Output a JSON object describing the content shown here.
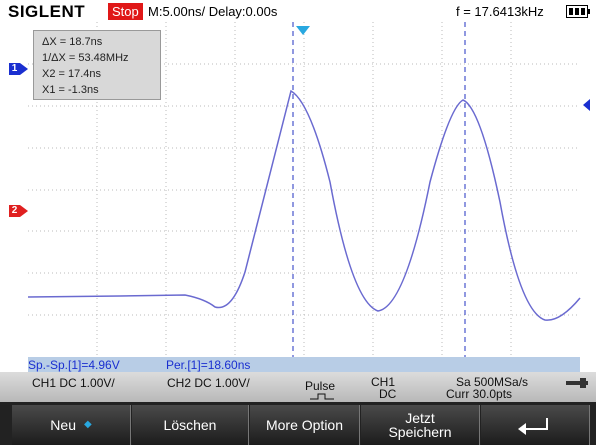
{
  "header": {
    "brand": "SIGLENT",
    "state": "Stop",
    "timebase": "M:5.00ns/ Delay:0.00s",
    "frequency": "f = 17.6413kHz"
  },
  "cursor_box": [
    "ΔX = 18.7ns",
    "1/ΔX = 53.48MHz",
    "X2 = 17.4ns",
    "X1 = -1.3ns"
  ],
  "channel_markers": [
    "1",
    "2"
  ],
  "measurements": [
    "Sp.-Sp.[1]=4.96V",
    "Per.[1]=18.60ns"
  ],
  "status": {
    "ch1": "CH1 DC 1.00V/",
    "ch2": "CH2 DC 1.00V/",
    "trigger_type": "Pulse",
    "trigger_source": [
      "CH1",
      "DC"
    ],
    "acquisition": [
      "Sa 500MSa/s",
      "Curr 30.0pts"
    ]
  },
  "buttons": [
    "Neu",
    "Löschen",
    "More Option",
    "Jetzt Speichern"
  ]
}
